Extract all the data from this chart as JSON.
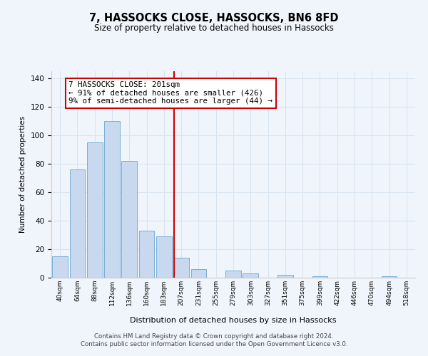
{
  "title": "7, HASSOCKS CLOSE, HASSOCKS, BN6 8FD",
  "subtitle": "Size of property relative to detached houses in Hassocks",
  "xlabel": "Distribution of detached houses by size in Hassocks",
  "ylabel": "Number of detached properties",
  "bar_labels": [
    "40sqm",
    "64sqm",
    "88sqm",
    "112sqm",
    "136sqm",
    "160sqm",
    "183sqm",
    "207sqm",
    "231sqm",
    "255sqm",
    "279sqm",
    "303sqm",
    "327sqm",
    "351sqm",
    "375sqm",
    "399sqm",
    "422sqm",
    "446sqm",
    "470sqm",
    "494sqm",
    "518sqm"
  ],
  "bar_values": [
    15,
    76,
    95,
    110,
    82,
    33,
    29,
    14,
    6,
    0,
    5,
    3,
    0,
    2,
    0,
    1,
    0,
    0,
    0,
    1,
    0
  ],
  "bar_color": "#c8d8ee",
  "bar_edge_color": "#7aaed6",
  "vline_color": "#cc0000",
  "annotation_line1": "7 HASSOCKS CLOSE: 201sqm",
  "annotation_line2": "← 91% of detached houses are smaller (426)",
  "annotation_line3": "9% of semi-detached houses are larger (44) →",
  "annotation_box_color": "#ffffff",
  "annotation_box_edge": "#cc0000",
  "ylim": [
    0,
    145
  ],
  "yticks": [
    0,
    20,
    40,
    60,
    80,
    100,
    120,
    140
  ],
  "grid_color": "#d8e4f0",
  "footer_line1": "Contains HM Land Registry data © Crown copyright and database right 2024.",
  "footer_line2": "Contains public sector information licensed under the Open Government Licence v3.0.",
  "bg_color": "#f0f5fb"
}
